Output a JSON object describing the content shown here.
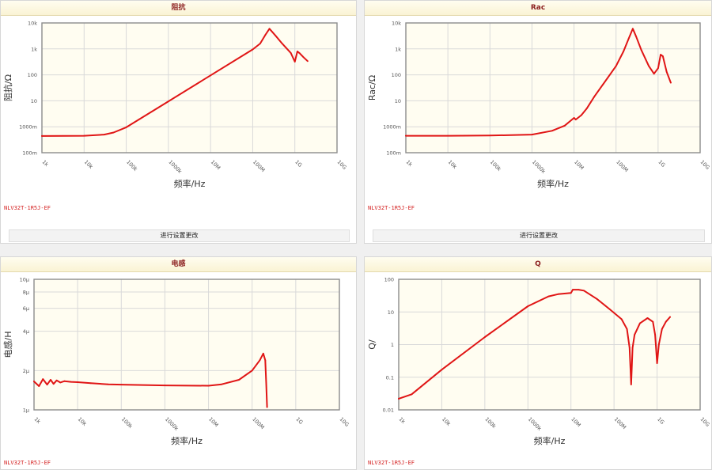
{
  "part_number": "NLV32T-1R5J-EF",
  "settings_label": "进行设置更改",
  "colors": {
    "curve": "#e01515",
    "plot_bg": "#fffdf1",
    "grid": "#d9d9d9"
  },
  "chart_data": [
    {
      "id": "impedance",
      "type": "line",
      "title": "阻抗",
      "xlabel": "频率/Hz",
      "ylabel": "阻抗/Ω",
      "x_scale": "log",
      "y_scale": "log",
      "xlim": [
        1000,
        10000000000
      ],
      "ylim": [
        0.1,
        10000
      ],
      "x_ticks": [
        1000,
        10000,
        100000,
        1000000,
        10000000,
        100000000,
        1000000000,
        10000000000
      ],
      "x_tick_labels": [
        "1k",
        "10k",
        "100k",
        "1000k",
        "10M",
        "100M",
        "1G",
        "10G"
      ],
      "y_ticks": [
        0.1,
        1,
        10,
        100,
        1000,
        10000
      ],
      "y_tick_labels": [
        "100m",
        "1000m",
        "10",
        "100",
        "1k",
        "10k"
      ],
      "series": [
        {
          "x": [
            1000,
            10000,
            30000,
            50000,
            100000,
            1000000,
            10000000,
            100000000,
            150000000,
            200000000,
            250000000,
            350000000,
            500000000,
            800000000,
            1000000000,
            1150000000,
            1300000000,
            1600000000,
            2000000000
          ],
          "y": [
            0.44,
            0.45,
            0.5,
            0.6,
            0.95,
            9.5,
            95,
            950,
            1600,
            3500,
            6000,
            3200,
            1600,
            700,
            320,
            800,
            680,
            480,
            340
          ]
        }
      ]
    },
    {
      "id": "rac",
      "type": "line",
      "title": "Rac",
      "xlabel": "频率/Hz",
      "ylabel": "Rac/Ω",
      "x_scale": "log",
      "y_scale": "log",
      "xlim": [
        1000,
        10000000000
      ],
      "ylim": [
        0.1,
        10000
      ],
      "x_ticks": [
        1000,
        10000,
        100000,
        1000000,
        10000000,
        100000000,
        1000000000,
        10000000000
      ],
      "x_tick_labels": [
        "1k",
        "10k",
        "100k",
        "1000k",
        "10M",
        "100M",
        "1G",
        "10G"
      ],
      "y_ticks": [
        0.1,
        1,
        10,
        100,
        1000,
        10000
      ],
      "y_tick_labels": [
        "100m",
        "1000m",
        "10",
        "100",
        "1k",
        "10k"
      ],
      "series": [
        {
          "x": [
            1000,
            10000,
            100000,
            1000000,
            3000000,
            6000000,
            10000000,
            11000000,
            15000000,
            20000000,
            30000000,
            50000000,
            100000000,
            150000000,
            200000000,
            250000000,
            300000000,
            400000000,
            600000000,
            800000000,
            1000000000,
            1150000000,
            1300000000,
            1600000000,
            2000000000
          ],
          "y": [
            0.45,
            0.45,
            0.46,
            0.5,
            0.7,
            1.1,
            2.2,
            1.9,
            2.8,
            5,
            14,
            45,
            220,
            800,
            2500,
            6000,
            3000,
            900,
            220,
            110,
            180,
            600,
            520,
            130,
            50
          ]
        }
      ]
    },
    {
      "id": "inductance",
      "type": "line",
      "title": "电感",
      "xlabel": "频率/Hz",
      "ylabel": "电感/H",
      "x_scale": "log",
      "y_scale": "log",
      "xlim": [
        1000,
        10000000000
      ],
      "ylim": [
        1e-06,
        1e-05
      ],
      "x_ticks": [
        1000,
        10000,
        100000,
        1000000,
        10000000,
        100000000,
        1000000000,
        10000000000
      ],
      "x_tick_labels": [
        "1k",
        "10k",
        "100k",
        "1000k",
        "10M",
        "100M",
        "1G",
        "10G"
      ],
      "y_ticks": [
        1e-06,
        2e-06,
        4e-06,
        6e-06,
        8e-06,
        1e-05
      ],
      "y_tick_labels": [
        "1μ",
        "2μ",
        "4μ",
        "6μ",
        "8μ",
        "10μ"
      ],
      "series": [
        {
          "x": [
            1000,
            1300,
            1600,
            2000,
            2400,
            2800,
            3300,
            4000,
            5000,
            7000,
            10000,
            20000,
            50000,
            100000,
            1000000,
            10000000,
            20000000,
            50000000,
            100000000,
            150000000,
            180000000,
            200000000,
            210000000,
            220000000
          ],
          "y": [
            1.65e-06,
            1.52e-06,
            1.72e-06,
            1.56e-06,
            1.7e-06,
            1.58e-06,
            1.68e-06,
            1.62e-06,
            1.66e-06,
            1.64e-06,
            1.63e-06,
            1.6e-06,
            1.57e-06,
            1.56e-06,
            1.54e-06,
            1.53e-06,
            1.57e-06,
            1.7e-06,
            2e-06,
            2.4e-06,
            2.7e-06,
            2.4e-06,
            1.6e-06,
            1.05e-06
          ]
        }
      ]
    },
    {
      "id": "q_factor",
      "type": "line",
      "title": "Q",
      "xlabel": "频率/Hz",
      "ylabel": "Q/",
      "x_scale": "log",
      "y_scale": "log",
      "xlim": [
        1000,
        10000000000
      ],
      "ylim": [
        0.01,
        100
      ],
      "x_ticks": [
        1000,
        10000,
        100000,
        1000000,
        10000000,
        100000000,
        1000000000,
        10000000000
      ],
      "x_tick_labels": [
        "1k",
        "10k",
        "100k",
        "1000k",
        "10M",
        "100M",
        "1G",
        "10G"
      ],
      "y_ticks": [
        0.01,
        0.1,
        1,
        10,
        100
      ],
      "y_tick_labels": [
        "0.01",
        "0.1",
        "1",
        "10",
        "100"
      ],
      "series": [
        {
          "x": [
            1000,
            2000,
            10000,
            100000,
            1000000,
            3000000,
            5000000,
            10000000,
            11000000,
            15000000,
            20000000,
            40000000,
            80000000,
            150000000,
            200000000,
            230000000,
            250000000,
            270000000,
            300000000,
            400000000,
            600000000,
            800000000,
            900000000,
            1000000000,
            1100000000,
            1300000000,
            1600000000,
            2000000000
          ],
          "y": [
            0.022,
            0.03,
            0.17,
            1.7,
            15,
            30,
            35,
            38,
            48,
            48,
            45,
            25,
            12,
            6,
            3,
            0.8,
            0.06,
            0.8,
            2,
            4.5,
            6.5,
            5,
            2,
            0.27,
            1,
            3,
            5,
            7
          ]
        }
      ]
    }
  ]
}
